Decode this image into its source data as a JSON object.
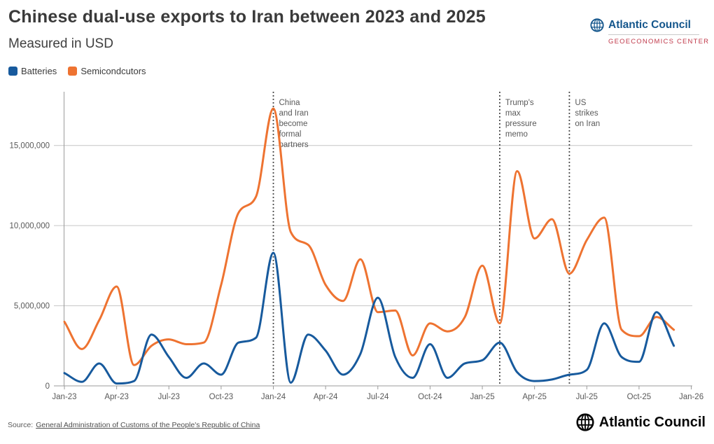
{
  "header": {
    "title": "Chinese dual-use exports to Iran between 2023 and 2025",
    "subtitle": "Measured in USD"
  },
  "branding": {
    "org_name": "Atlantic Council",
    "center_name": "GEOECONOMICS CENTER"
  },
  "legend": {
    "items": [
      {
        "label": "Batteries",
        "color": "#175a9d"
      },
      {
        "label": "Semicondcutors",
        "color": "#ee7331"
      }
    ]
  },
  "footer": {
    "source_prefix": "Source:",
    "source_link_text": "General Administration of Customs of the People's Republic of China"
  },
  "colors": {
    "batteries": "#175a9d",
    "semiconductors": "#ee7331",
    "grid": "#c6c6c6",
    "axis": "#9b9b9b",
    "tick_label": "#595959",
    "annotation_line": "#333333",
    "annotation_text": "#595959",
    "logo_blue": "#14568c",
    "logo_red": "#c0394a"
  },
  "chart_data": {
    "type": "line",
    "title": "Chinese dual-use exports to Iran between 2023 and 2025",
    "subtitle": "Measured in USD",
    "unit": "USD",
    "grid": "horizontal",
    "legend_position": "top-left",
    "ylim": [
      0,
      17500000
    ],
    "x": [
      "Jan-23",
      "Feb-23",
      "Mar-23",
      "Apr-23",
      "May-23",
      "Jun-23",
      "Jul-23",
      "Aug-23",
      "Sep-23",
      "Oct-23",
      "Nov-23",
      "Dec-23",
      "Jan-24",
      "Feb-24",
      "Mar-24",
      "Apr-24",
      "May-24",
      "Jun-24",
      "Jul-24",
      "Aug-24",
      "Sep-24",
      "Oct-24",
      "Nov-24",
      "Dec-24",
      "Jan-25",
      "Feb-25",
      "Mar-25",
      "Apr-25",
      "May-25",
      "Jun-25",
      "Jul-25",
      "Aug-25",
      "Sep-25",
      "Oct-25",
      "Nov-25",
      "Dec-25"
    ],
    "x_tick_labels": [
      "Jan-23",
      "Apr-23",
      "Jul-23",
      "Oct-23",
      "Jan-24",
      "Apr-24",
      "Jul-24",
      "Oct-24",
      "Jan-25",
      "Apr-25",
      "Jul-25",
      "Oct-25",
      "Jan-26"
    ],
    "y_ticks": [
      {
        "value": 0,
        "label": "0"
      },
      {
        "value": 5000000,
        "label": "5,000,000"
      },
      {
        "value": 10000000,
        "label": "10,000,000"
      },
      {
        "value": 15000000,
        "label": "15,000,000"
      }
    ],
    "series": [
      {
        "name": "Batteries",
        "color": "#175a9d",
        "values": [
          800000,
          250000,
          1400000,
          150000,
          300000,
          3200000,
          1800000,
          500000,
          1400000,
          700000,
          2700000,
          3000000,
          8300000,
          200000,
          3200000,
          2200000,
          700000,
          2000000,
          5500000,
          1800000,
          500000,
          2600000,
          500000,
          1400000,
          1600000,
          2700000,
          850000,
          300000,
          400000,
          700000,
          1000000,
          3900000,
          1800000,
          1500000,
          4600000,
          2500000
        ]
      },
      {
        "name": "Semicondcutors",
        "color": "#ee7331",
        "values": [
          4000000,
          2300000,
          4100000,
          6200000,
          1300000,
          2500000,
          2900000,
          2600000,
          2700000,
          6300000,
          10800000,
          11800000,
          17300000,
          9600000,
          8800000,
          6300000,
          5300000,
          7900000,
          4600000,
          4700000,
          1900000,
          3900000,
          3400000,
          4300000,
          7500000,
          3900000,
          13400000,
          9200000,
          10400000,
          7000000,
          9100000,
          10500000,
          3500000,
          3100000,
          4300000,
          3500000
        ]
      }
    ],
    "annotations": [
      {
        "x": "Jan-24",
        "label": "China and Iran become formal partners",
        "lines": [
          "China",
          "and Iran",
          "become",
          "formal",
          "partners"
        ]
      },
      {
        "x": "Feb-25",
        "label": "Trump's max pressure memo",
        "lines": [
          "Trump's",
          "max",
          "pressure",
          "memo"
        ]
      },
      {
        "x": "Jun-25",
        "label": "US strikes on Iran",
        "lines": [
          "US",
          "strikes",
          "on Iran"
        ]
      }
    ]
  }
}
